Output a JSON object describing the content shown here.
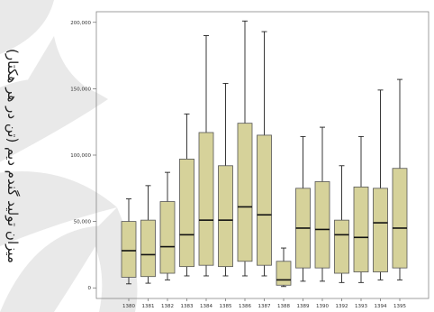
{
  "chart_data": {
    "type": "box",
    "ylabel": "میزان تولید گندم دیم (تن در هر هکتار)",
    "xlabel": "",
    "ylim": [
      -8000,
      208000
    ],
    "ytick_values": [
      0,
      50000,
      100000,
      150000,
      200000
    ],
    "ytick_labels": [
      "0",
      "50,000",
      "100,000",
      "150,000",
      "200,000"
    ],
    "categories": [
      "1380",
      "1381",
      "1382",
      "1383",
      "1384",
      "1385",
      "1386",
      "1387",
      "1388",
      "1389",
      "1390",
      "1392",
      "1393",
      "1394",
      "1395"
    ],
    "boxes": [
      {
        "min": 3000,
        "q1": 8000,
        "median": 28000,
        "q3": 50000,
        "max": 67000
      },
      {
        "min": 3500,
        "q1": 8500,
        "median": 25000,
        "q3": 51000,
        "max": 77000
      },
      {
        "min": 6000,
        "q1": 11000,
        "median": 31000,
        "q3": 65000,
        "max": 87000
      },
      {
        "min": 9000,
        "q1": 16000,
        "median": 40000,
        "q3": 97000,
        "max": 131000
      },
      {
        "min": 9000,
        "q1": 17000,
        "median": 51000,
        "q3": 117000,
        "max": 190000
      },
      {
        "min": 9000,
        "q1": 16000,
        "median": 51000,
        "q3": 92000,
        "max": 154000
      },
      {
        "min": 9000,
        "q1": 20000,
        "median": 61000,
        "q3": 124000,
        "max": 201000
      },
      {
        "min": 9000,
        "q1": 17000,
        "median": 55000,
        "q3": 115000,
        "max": 193000
      },
      {
        "min": 1000,
        "q1": 2000,
        "median": 6000,
        "q3": 20000,
        "max": 30000
      },
      {
        "min": 5000,
        "q1": 15000,
        "median": 45000,
        "q3": 75000,
        "max": 114000
      },
      {
        "min": 5000,
        "q1": 15000,
        "median": 44000,
        "q3": 80000,
        "max": 121000
      },
      {
        "min": 4000,
        "q1": 11000,
        "median": 40000,
        "q3": 51000,
        "max": 92000
      },
      {
        "min": 4000,
        "q1": 12000,
        "median": 38000,
        "q3": 76000,
        "max": 114000
      },
      {
        "min": 6000,
        "q1": 12000,
        "median": 49000,
        "q3": 75000,
        "max": 149000
      },
      {
        "min": 6000,
        "q1": 15000,
        "median": 45000,
        "q3": 90000,
        "max": 157000
      }
    ],
    "box_fill": "#d6d29a",
    "box_stroke": "#555555",
    "frame_stroke": "#888888"
  }
}
